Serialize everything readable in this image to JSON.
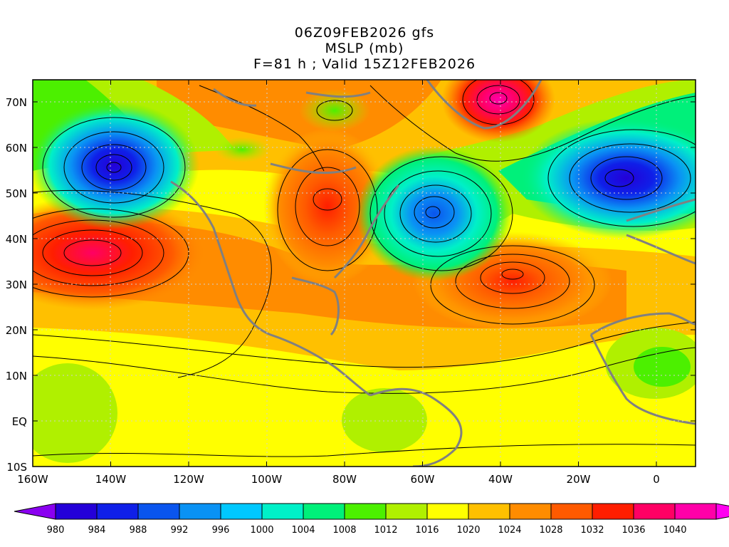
{
  "titles": {
    "line1": "06Z09FEB2026 gfs",
    "line2": "MSLP (mb)",
    "line3": "F=81 h ; Valid 15Z12FEB2026"
  },
  "axes": {
    "lat_labels": [
      "70N",
      "60N",
      "50N",
      "40N",
      "30N",
      "20N",
      "10N",
      "EQ",
      "10S"
    ],
    "lon_labels": [
      "160W",
      "140W",
      "120W",
      "100W",
      "80W",
      "60W",
      "40W",
      "20W",
      "0"
    ]
  },
  "colorbar": {
    "labels": [
      "980",
      "984",
      "988",
      "992",
      "996",
      "1000",
      "1004",
      "1008",
      "1012",
      "1016",
      "1020",
      "1024",
      "1028",
      "1032",
      "1036",
      "1040"
    ],
    "colors": [
      "#2400d8",
      "#0f1fe8",
      "#0a55ee",
      "#0a92f4",
      "#00c8ff",
      "#00f0c8",
      "#00f07a",
      "#4cf000",
      "#b0f000",
      "#ffff00",
      "#ffc000",
      "#ff8c00",
      "#ff5a00",
      "#ff1e00",
      "#ff0064",
      "#ff00a8"
    ],
    "left_arrow_color": "#8a00f0",
    "right_arrow_color": "#ff00f0"
  },
  "map": {
    "coast_color": "#808080",
    "contour_color": "#000000"
  }
}
